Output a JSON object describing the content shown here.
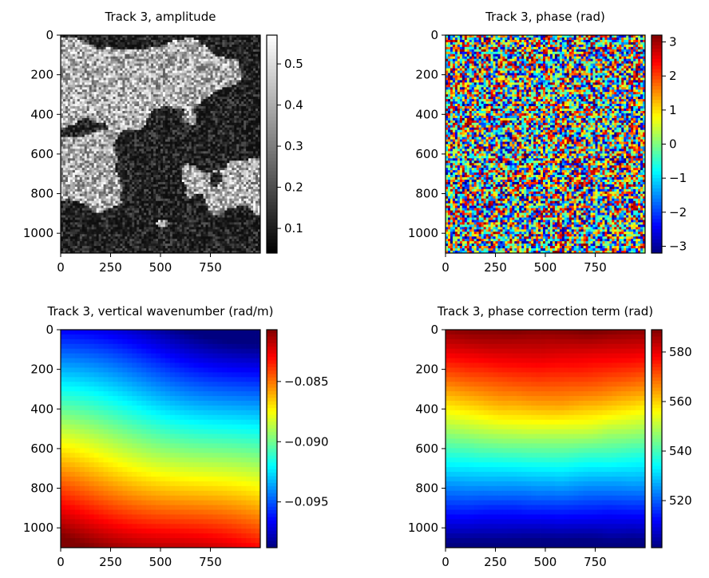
{
  "chart_data": [
    {
      "type": "heatmap",
      "title": "Track 3, amplitude",
      "colormap": "gray",
      "x_ticks": [
        "0",
        "250",
        "500",
        "750"
      ],
      "y_ticks": [
        "0",
        "200",
        "400",
        "600",
        "800",
        "1000"
      ],
      "xlim": [
        0,
        1000
      ],
      "ylim": [
        1100,
        0
      ],
      "color_range": [
        0.04,
        0.57
      ],
      "colorbar_ticks": [
        {
          "value": 0.5,
          "label": "0.5"
        },
        {
          "value": 0.4,
          "label": "0.4"
        },
        {
          "value": 0.3,
          "label": "0.3"
        },
        {
          "value": 0.2,
          "label": "0.2"
        },
        {
          "value": 0.1,
          "label": "0.1"
        }
      ]
    },
    {
      "type": "heatmap",
      "title": "Track 3, phase (rad)",
      "colormap": "jet",
      "x_ticks": [
        "0",
        "250",
        "500",
        "750"
      ],
      "y_ticks": [
        "0",
        "200",
        "400",
        "600",
        "800",
        "1000"
      ],
      "xlim": [
        0,
        1000
      ],
      "ylim": [
        1100,
        0
      ],
      "color_range": [
        -3.2,
        3.2
      ],
      "colorbar_ticks": [
        {
          "value": 3,
          "label": "3"
        },
        {
          "value": 2,
          "label": "2"
        },
        {
          "value": 1,
          "label": "1"
        },
        {
          "value": 0,
          "label": "0"
        },
        {
          "value": -1,
          "label": "−1"
        },
        {
          "value": -2,
          "label": "−2"
        },
        {
          "value": -3,
          "label": "−3"
        }
      ]
    },
    {
      "type": "heatmap",
      "title": "Track 3, vertical wavenumber (rad/m)",
      "colormap": "jet",
      "x_ticks": [
        "0",
        "250",
        "500",
        "750"
      ],
      "y_ticks": [
        "0",
        "200",
        "400",
        "600",
        "800",
        "1000"
      ],
      "xlim": [
        0,
        1000
      ],
      "ylim": [
        1100,
        0
      ],
      "color_range": [
        -0.0988,
        -0.0807
      ],
      "colorbar_ticks": [
        {
          "value": -0.085,
          "label": "−0.085"
        },
        {
          "value": -0.09,
          "label": "−0.090"
        },
        {
          "value": -0.095,
          "label": "−0.095"
        }
      ]
    },
    {
      "type": "heatmap",
      "title": "Track 3, phase correction term (rad)",
      "colormap": "jet",
      "x_ticks": [
        "0",
        "250",
        "500",
        "750"
      ],
      "y_ticks": [
        "0",
        "200",
        "400",
        "600",
        "800",
        "1000"
      ],
      "xlim": [
        0,
        1000
      ],
      "ylim": [
        1100,
        0
      ],
      "color_range": [
        501,
        589
      ],
      "colorbar_ticks": [
        {
          "value": 580,
          "label": "580"
        },
        {
          "value": 560,
          "label": "560"
        },
        {
          "value": 540,
          "label": "540"
        },
        {
          "value": 520,
          "label": "520"
        }
      ]
    }
  ]
}
